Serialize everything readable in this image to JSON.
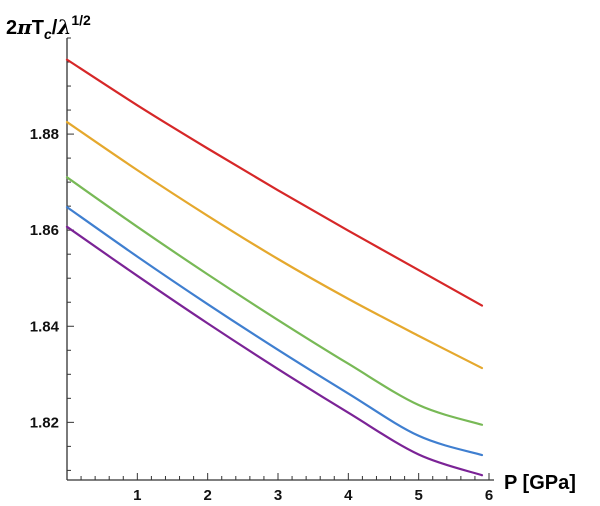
{
  "chart_data": {
    "type": "line",
    "title": "",
    "ylabel_parts": {
      "prefix": "2",
      "pi": "π",
      "T": "T",
      "T_sub": "c",
      "slash": "/",
      "lambda": "λ",
      "lambda_sup": "1/2"
    },
    "xlabel": "P [GPa]",
    "xlim": [
      0,
      6
    ],
    "ylim": [
      1.808,
      1.9
    ],
    "x_major_ticks": [
      1,
      2,
      3,
      4,
      5,
      6
    ],
    "x_tick_labels": [
      "1",
      "2",
      "3",
      "4",
      "5",
      "6"
    ],
    "y_major_ticks": [
      1.82,
      1.84,
      1.86,
      1.88
    ],
    "y_tick_labels": [
      "1.82",
      "1.84",
      "1.86",
      "1.88"
    ],
    "grid": false,
    "x": [
      0,
      1,
      2,
      3,
      4,
      5,
      5.9
    ],
    "series": [
      {
        "color": "#d62728",
        "values": [
          1.8955,
          1.886,
          1.877,
          1.8683,
          1.8599,
          1.8517,
          1.8443
        ]
      },
      {
        "color": "#e5a82d",
        "values": [
          1.8825,
          1.8725,
          1.863,
          1.854,
          1.8457,
          1.838,
          1.8313
        ]
      },
      {
        "color": "#78b956",
        "values": [
          1.871,
          1.8607,
          1.8508,
          1.8413,
          1.8322,
          1.8236,
          1.8195
        ]
      },
      {
        "color": "#3f7fd0",
        "values": [
          1.8648,
          1.8545,
          1.8446,
          1.8351,
          1.826,
          1.8172,
          1.8132
        ]
      },
      {
        "color": "#7b2396",
        "values": [
          1.8607,
          1.8505,
          1.8406,
          1.8311,
          1.822,
          1.8133,
          1.809
        ]
      }
    ]
  }
}
